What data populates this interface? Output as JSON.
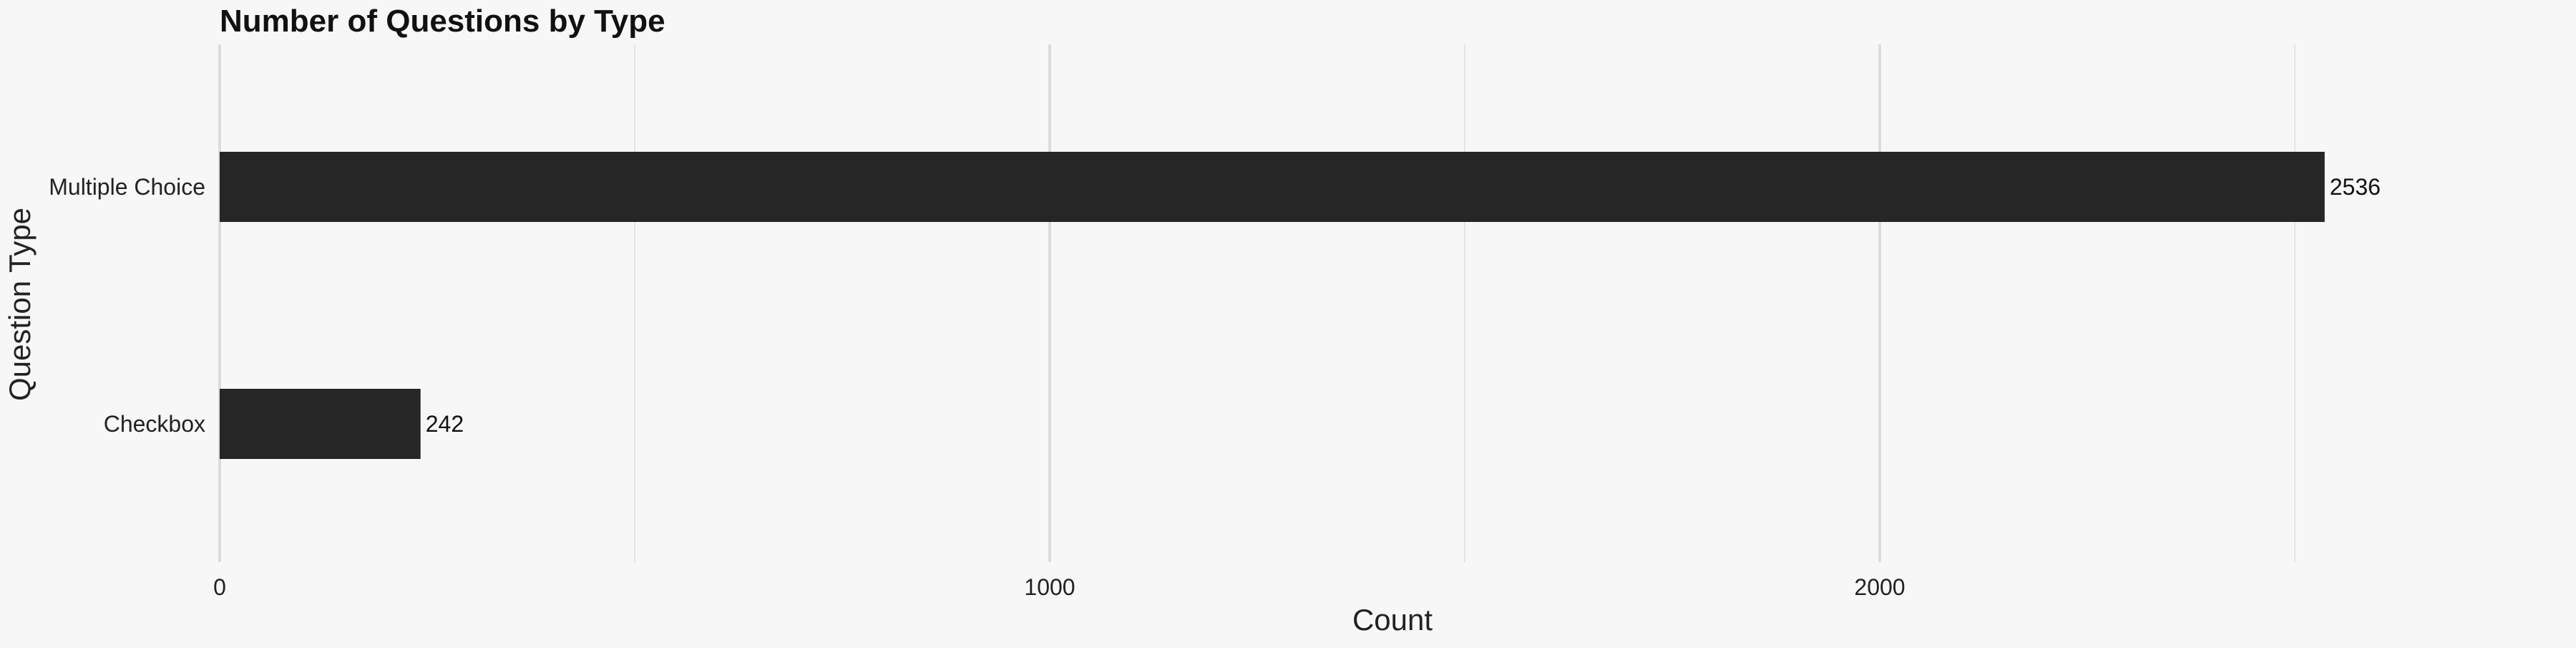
{
  "chart_data": {
    "type": "bar",
    "orientation": "horizontal",
    "title": "Number of Questions by Type",
    "xlabel": "Count",
    "ylabel": "Question Type",
    "categories": [
      "Multiple Choice",
      "Checkbox"
    ],
    "values": [
      2536,
      242
    ],
    "xlim": [
      0,
      2800
    ],
    "x_ticks": [
      0,
      1000,
      2000
    ],
    "x_minor_gridlines": [
      500,
      1500,
      2500
    ],
    "grid": true,
    "legend": "none",
    "bar_color": "#262626",
    "background_color": "#f7f7f7"
  }
}
